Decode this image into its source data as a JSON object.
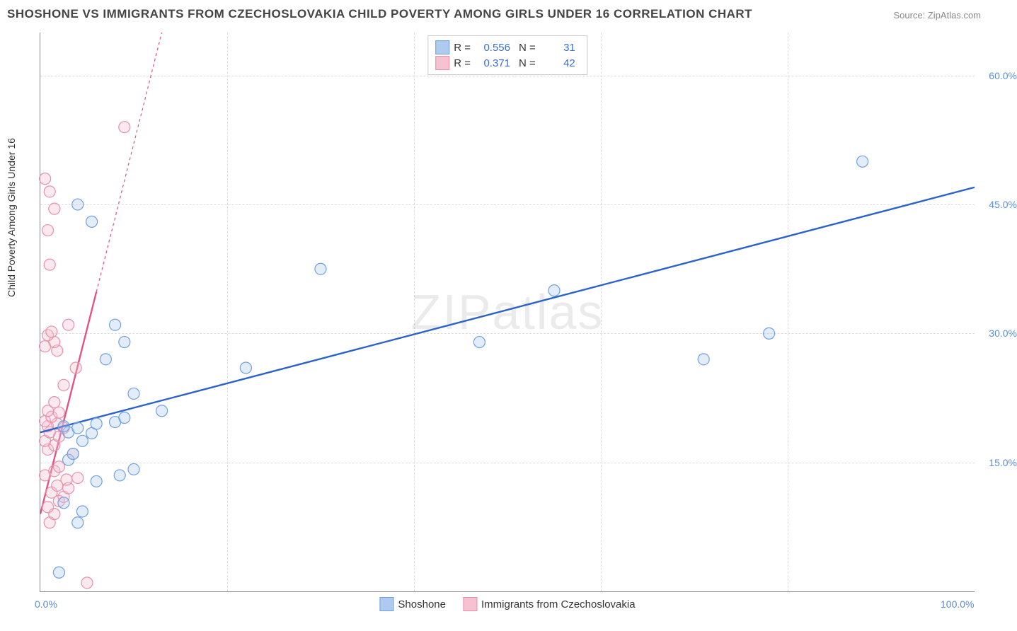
{
  "title": "SHOSHONE VS IMMIGRANTS FROM CZECHOSLOVAKIA CHILD POVERTY AMONG GIRLS UNDER 16 CORRELATION CHART",
  "source": "Source: ZipAtlas.com",
  "watermark": "ZIPatlas",
  "ylabel": "Child Poverty Among Girls Under 16",
  "chart": {
    "type": "scatter",
    "xlim": [
      0,
      100
    ],
    "ylim": [
      0,
      65
    ],
    "xticks": [
      0,
      100
    ],
    "xtick_labels": [
      "0.0%",
      "100.0%"
    ],
    "yticks": [
      15,
      30,
      45,
      60
    ],
    "ytick_labels": [
      "15.0%",
      "30.0%",
      "45.0%",
      "60.0%"
    ],
    "vgrid_at": [
      20,
      40,
      60,
      80
    ],
    "marker_radius": 8,
    "marker_stroke_width": 1.2,
    "marker_fill_opacity": 0.35,
    "background_color": "#ffffff",
    "grid_color": "#dddddd",
    "axis_color": "#888888",
    "series": [
      {
        "name": "Shoshone",
        "color_stroke": "#6fa0e0",
        "color_fill": "#aecbef",
        "trend_color": "#2b63c9",
        "trend_width": 2.4,
        "trend_dash": "none",
        "trend": {
          "x1": 0,
          "y1": 18.5,
          "x2": 100,
          "y2": 47
        },
        "R": "0.556",
        "N": "31",
        "points": [
          [
            2,
            2.2
          ],
          [
            4,
            8
          ],
          [
            4.5,
            9.3
          ],
          [
            2.5,
            10.3
          ],
          [
            6,
            12.8
          ],
          [
            8.5,
            13.5
          ],
          [
            10,
            14.2
          ],
          [
            3,
            15.3
          ],
          [
            3.5,
            16
          ],
          [
            4.5,
            17.5
          ],
          [
            5.5,
            18.4
          ],
          [
            3,
            18.5
          ],
          [
            4,
            19
          ],
          [
            2.5,
            19.2
          ],
          [
            6,
            19.5
          ],
          [
            8,
            19.7
          ],
          [
            9,
            20.2
          ],
          [
            13,
            21
          ],
          [
            10,
            23
          ],
          [
            7,
            27
          ],
          [
            9,
            29
          ],
          [
            8,
            31
          ],
          [
            22,
            26
          ],
          [
            30,
            37.5
          ],
          [
            5.5,
            43
          ],
          [
            4,
            45
          ],
          [
            55,
            35
          ],
          [
            47,
            29
          ],
          [
            71,
            27
          ],
          [
            78,
            30
          ],
          [
            88,
            50
          ]
        ]
      },
      {
        "name": "Immigrants from Czechoslovakia",
        "color_stroke": "#e890aa",
        "color_fill": "#f6c1d1",
        "trend_color": "#e05583",
        "trend_width": 2.4,
        "trend_dash": "4,4",
        "trend": {
          "x1": 0,
          "y1": 9,
          "x2": 13,
          "y2": 65
        },
        "trend_solid_until_x": 6,
        "R": "0.371",
        "N": "42",
        "points": [
          [
            5,
            1
          ],
          [
            1,
            8
          ],
          [
            1.5,
            9
          ],
          [
            0.8,
            9.8
          ],
          [
            2,
            10.5
          ],
          [
            2.5,
            11
          ],
          [
            1.2,
            11.5
          ],
          [
            3,
            12
          ],
          [
            1.8,
            12.3
          ],
          [
            2.8,
            13
          ],
          [
            4,
            13.2
          ],
          [
            0.5,
            13.5
          ],
          [
            1.5,
            14
          ],
          [
            2,
            14.5
          ],
          [
            3.5,
            16
          ],
          [
            0.8,
            16.5
          ],
          [
            1.5,
            17
          ],
          [
            0.5,
            17.5
          ],
          [
            2,
            18
          ],
          [
            1,
            18.5
          ],
          [
            2.5,
            19
          ],
          [
            0.8,
            19.2
          ],
          [
            1.8,
            19.5
          ],
          [
            0.5,
            19.8
          ],
          [
            1.2,
            20.3
          ],
          [
            2,
            20.8
          ],
          [
            0.8,
            21
          ],
          [
            1.5,
            22
          ],
          [
            1.8,
            28
          ],
          [
            0.5,
            28.5
          ],
          [
            1.5,
            29
          ],
          [
            0.8,
            29.8
          ],
          [
            1.2,
            30.2
          ],
          [
            1,
            38
          ],
          [
            0.8,
            42
          ],
          [
            1.5,
            44.5
          ],
          [
            1,
            46.5
          ],
          [
            0.5,
            48
          ],
          [
            9,
            54
          ],
          [
            3,
            31
          ],
          [
            2.5,
            24
          ],
          [
            3.8,
            26
          ]
        ]
      }
    ]
  },
  "legend_bottom": [
    {
      "label": "Shoshone",
      "fill": "#aecbef",
      "stroke": "#6fa0e0"
    },
    {
      "label": "Immigrants from Czechoslovakia",
      "fill": "#f6c1d1",
      "stroke": "#e890aa"
    }
  ]
}
